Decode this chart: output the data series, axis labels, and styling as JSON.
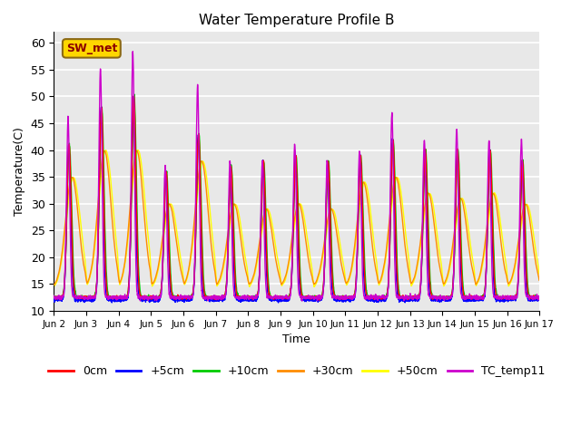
{
  "title": "Water Temperature Profile B",
  "xlabel": "Time",
  "ylabel": "Temperature(C)",
  "ylim": [
    10,
    62
  ],
  "yticks": [
    10,
    15,
    20,
    25,
    30,
    35,
    40,
    45,
    50,
    55,
    60
  ],
  "xtick_labels": [
    "Jun 2",
    "Jun 3",
    "Jun 4",
    "Jun 5",
    "Jun 6",
    "Jun 7",
    "Jun 8",
    "Jun 9",
    "Jun 10",
    "Jun 11",
    "Jun 12",
    "Jun 13",
    "Jun 14",
    "Jun 15",
    "Jun 16",
    "Jun 17"
  ],
  "annotation_text": "SW_met",
  "annotation_fg": "#8B0000",
  "annotation_bg": "#FFD700",
  "background_color": "#E8E8E8",
  "plot_bg": "#F0F0F0",
  "grid_color": "#FFFFFF",
  "series_colors": {
    "0cm": "#FF0000",
    "+5cm": "#0000FF",
    "+10cm": "#00CC00",
    "+30cm": "#FF8C00",
    "+50cm": "#FFFF00",
    "TC_temp11": "#CC00CC"
  },
  "series_linewidth": 1.0,
  "figsize": [
    6.4,
    4.8
  ],
  "dpi": 100,
  "n_days": 15,
  "base_min": 12.5,
  "tc_peaks": [
    46,
    55,
    58,
    37,
    52,
    38,
    38,
    41,
    38,
    40,
    47,
    42,
    44,
    42,
    42
  ],
  "srf_peaks": [
    41,
    48,
    50,
    36,
    43,
    37,
    38,
    39,
    38,
    39,
    42,
    40,
    40,
    40,
    38
  ],
  "deep_peaks": [
    35,
    40,
    40,
    30,
    38,
    30,
    29,
    30,
    29,
    34,
    35,
    32,
    31,
    32,
    30
  ]
}
